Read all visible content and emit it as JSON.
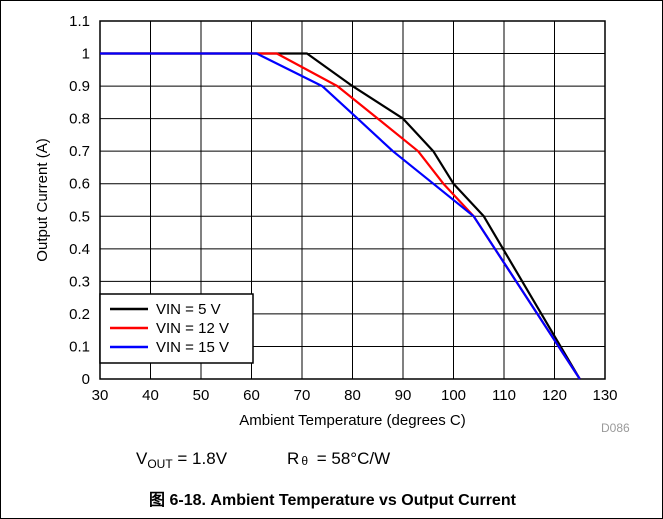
{
  "chart_data": {
    "type": "line",
    "title": "",
    "xlabel": "Ambient Temperature (degrees C)",
    "ylabel": "Output Current (A)",
    "xlim": [
      30,
      130
    ],
    "ylim": [
      0,
      1.1
    ],
    "x_ticks": [
      "30",
      "40",
      "50",
      "60",
      "70",
      "80",
      "90",
      "100",
      "110",
      "120",
      "130"
    ],
    "y_ticks": [
      "0",
      "0.1",
      "0.2",
      "0.3",
      "0.4",
      "0.5",
      "0.6",
      "0.7",
      "0.8",
      "0.9",
      "1",
      "1.1"
    ],
    "grid": true,
    "legend_position": "bottom-left",
    "series": [
      {
        "name": "VIN = 5 V",
        "color": "#000000",
        "points": [
          [
            30,
            1.0
          ],
          [
            71,
            1.0
          ],
          [
            80,
            0.9
          ],
          [
            90,
            0.8
          ],
          [
            96,
            0.7
          ],
          [
            100,
            0.6
          ],
          [
            106,
            0.5
          ],
          [
            125,
            0.0
          ]
        ]
      },
      {
        "name": "VIN = 12 V",
        "color": "#ff0000",
        "points": [
          [
            30,
            1.0
          ],
          [
            65,
            1.0
          ],
          [
            77,
            0.9
          ],
          [
            85,
            0.8
          ],
          [
            93,
            0.7
          ],
          [
            98,
            0.6
          ],
          [
            104,
            0.5
          ],
          [
            125,
            0.0
          ]
        ]
      },
      {
        "name": "VIN = 15 V",
        "color": "#0000ff",
        "points": [
          [
            30,
            1.0
          ],
          [
            61,
            1.0
          ],
          [
            74,
            0.9
          ],
          [
            81,
            0.8
          ],
          [
            88,
            0.7
          ],
          [
            96,
            0.6
          ],
          [
            104,
            0.5
          ],
          [
            125,
            0.0
          ]
        ]
      }
    ]
  },
  "figure_id": "D086",
  "conditions": {
    "vout_symbol": "V",
    "vout_sub": "OUT",
    "vout_value": " = 1.8V",
    "rtheta_symbol": "R",
    "rtheta_sub": "θ",
    "rtheta_value": " = 58°C/W"
  },
  "caption": "图 6-18. Ambient Temperature vs Output Current"
}
